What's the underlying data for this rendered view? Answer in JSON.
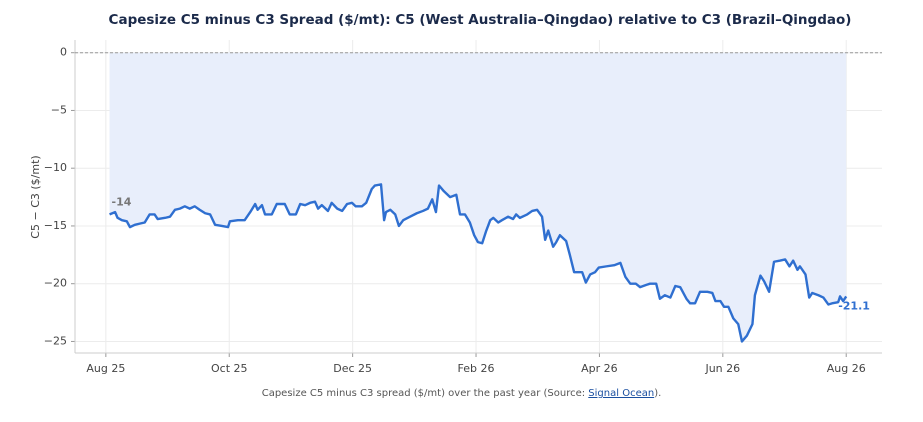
{
  "chart_data": {
    "type": "line",
    "title": "Capesize C5 minus C3 Spread ($/mt): C5 (West Australia–Qingdao) relative to C3 (Brazil–Qingdao)",
    "ylabel": "C5 − C3 ($/mt)",
    "xlim": [
      -0.5,
      12.58
    ],
    "ylim": [
      -26,
      1.1
    ],
    "xticks": [
      {
        "value": 0,
        "label": "Aug 25"
      },
      {
        "value": 2,
        "label": "Oct 25"
      },
      {
        "value": 4,
        "label": "Dec 25"
      },
      {
        "value": 6,
        "label": "Feb 26"
      },
      {
        "value": 8,
        "label": "Apr 26"
      },
      {
        "value": 10,
        "label": "Jun 26"
      },
      {
        "value": 12,
        "label": "Aug 26"
      }
    ],
    "yticks": [
      0,
      {
        "value": -5,
        "label": "−5"
      },
      {
        "value": -10,
        "label": "−10"
      },
      {
        "value": -15,
        "label": "−15"
      },
      {
        "value": -20,
        "label": "−20"
      },
      {
        "value": -25,
        "label": "−25"
      }
    ],
    "grid": true,
    "color": "#2f6fd0",
    "fill_color": "#e8eefb",
    "start_label": "-14",
    "end_label": "-21.1",
    "x": [
      0.06,
      0.15,
      0.19,
      0.26,
      0.34,
      0.39,
      0.47,
      0.55,
      0.63,
      0.71,
      0.79,
      0.84,
      0.96,
      1.04,
      1.12,
      1.2,
      1.28,
      1.36,
      1.44,
      1.52,
      1.61,
      1.69,
      1.77,
      1.88,
      1.98,
      2.01,
      2.14,
      2.25,
      2.34,
      2.42,
      2.46,
      2.53,
      2.58,
      2.69,
      2.77,
      2.9,
      2.98,
      3.08,
      3.15,
      3.23,
      3.31,
      3.39,
      3.44,
      3.5,
      3.6,
      3.66,
      3.75,
      3.83,
      3.91,
      3.99,
      4.05,
      4.15,
      4.22,
      4.31,
      4.36,
      4.46,
      4.51,
      4.54,
      4.61,
      4.69,
      4.75,
      4.82,
      4.93,
      5.04,
      5.14,
      5.22,
      5.29,
      5.35,
      5.4,
      5.48,
      5.58,
      5.68,
      5.74,
      5.82,
      5.9,
      5.97,
      6.03,
      6.1,
      6.16,
      6.23,
      6.28,
      6.36,
      6.42,
      6.52,
      6.6,
      6.65,
      6.71,
      6.83,
      6.91,
      6.99,
      7.07,
      7.12,
      7.17,
      7.25,
      7.3,
      7.36,
      7.46,
      7.52,
      7.59,
      7.72,
      7.78,
      7.85,
      7.93,
      7.99,
      8.11,
      8.24,
      8.34,
      8.42,
      8.5,
      8.59,
      8.66,
      8.76,
      8.82,
      8.92,
      8.98,
      9.06,
      9.15,
      9.23,
      9.31,
      9.41,
      9.47,
      9.55,
      9.63,
      9.75,
      9.83,
      9.88,
      9.96,
      10.02,
      10.09,
      10.17,
      10.25,
      10.31,
      10.39,
      10.48,
      10.52,
      10.61,
      10.67,
      10.75,
      10.83,
      10.93,
      11.01,
      11.08,
      11.14,
      11.21,
      11.25,
      11.34,
      11.4,
      11.45,
      11.55,
      11.63,
      11.71,
      11.77,
      11.87,
      11.9,
      11.95,
      12.0
    ],
    "values": [
      -14.0,
      -13.8,
      -14.3,
      -14.5,
      -14.6,
      -15.1,
      -14.9,
      -14.8,
      -14.7,
      -14.0,
      -14.0,
      -14.4,
      -14.3,
      -14.2,
      -13.6,
      -13.5,
      -13.3,
      -13.5,
      -13.3,
      -13.6,
      -13.9,
      -14.0,
      -14.9,
      -15.0,
      -15.1,
      -14.6,
      -14.5,
      -14.5,
      -13.8,
      -13.1,
      -13.6,
      -13.2,
      -14.0,
      -14.0,
      -13.1,
      -13.1,
      -14.0,
      -14.0,
      -13.1,
      -13.2,
      -13.0,
      -12.9,
      -13.5,
      -13.2,
      -13.7,
      -13.0,
      -13.5,
      -13.7,
      -13.1,
      -13.0,
      -13.3,
      -13.3,
      -13.0,
      -11.8,
      -11.5,
      -11.4,
      -14.5,
      -13.8,
      -13.6,
      -14.0,
      -15.0,
      -14.5,
      -14.2,
      -13.9,
      -13.7,
      -13.5,
      -12.7,
      -13.8,
      -11.5,
      -12.0,
      -12.5,
      -12.3,
      -14.0,
      -14.0,
      -14.7,
      -15.8,
      -16.4,
      -16.5,
      -15.5,
      -14.5,
      -14.3,
      -14.7,
      -14.5,
      -14.2,
      -14.4,
      -14.0,
      -14.3,
      -14.0,
      -13.7,
      -13.6,
      -14.2,
      -16.2,
      -15.4,
      -16.8,
      -16.4,
      -15.8,
      -16.3,
      -17.5,
      -19.0,
      -19.0,
      -19.9,
      -19.2,
      -19.0,
      -18.6,
      -18.5,
      -18.4,
      -18.2,
      -19.4,
      -20.0,
      -20.0,
      -20.3,
      -20.1,
      -20.0,
      -20.0,
      -21.3,
      -21.0,
      -21.2,
      -20.2,
      -20.3,
      -21.3,
      -21.7,
      -21.7,
      -20.7,
      -20.7,
      -20.8,
      -21.5,
      -21.5,
      -22.0,
      -22.0,
      -23.0,
      -23.5,
      -25.0,
      -24.5,
      -23.5,
      -21.0,
      -19.3,
      -19.8,
      -20.7,
      -18.1,
      -18.0,
      -17.9,
      -18.5,
      -18.0,
      -18.8,
      -18.5,
      -19.2,
      -21.2,
      -20.8,
      -21.0,
      -21.2,
      -21.8,
      -21.7,
      -21.6,
      -21.1,
      -21.5,
      -21.1
    ]
  },
  "caption": {
    "prefix": "Capesize C5 minus C3 spread ($/mt) over the past year (Source: ",
    "link": "Signal Ocean",
    "suffix": ")."
  }
}
